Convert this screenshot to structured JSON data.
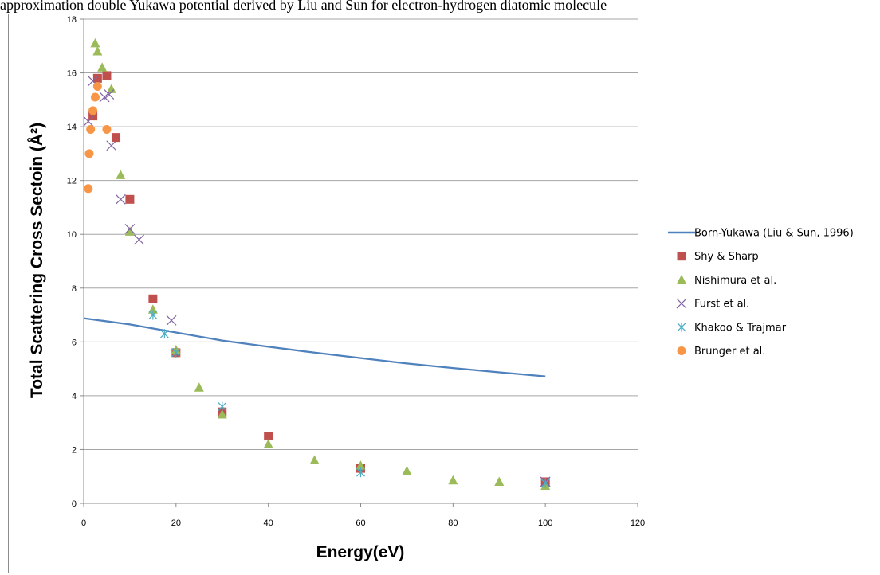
{
  "page": {
    "caption": "approximation double Yukawa potential derived by Liu and Sun for electron-hydrogen diatomic molecule"
  },
  "colors": {
    "theory_line": "#4f81bd",
    "shy_sharp": "#c0504d",
    "nishimura": "#9bbb59",
    "furst": "#8064a2",
    "khakoo": "#4bacc6",
    "brunger": "#f79646",
    "grid": "#a6a6a6",
    "axis": "#8c8c8c"
  },
  "chart_data": {
    "type": "scatter",
    "title": "",
    "xlabel": "Energy(eV)",
    "ylabel": "Total Scattering Cross Sectoin (Å²)",
    "xlim": [
      0,
      120
    ],
    "ylim": [
      0,
      18
    ],
    "x_ticks": [
      "0",
      "20",
      "40",
      "60",
      "80",
      "100",
      "120"
    ],
    "y_ticks": [
      "0",
      "2",
      "4",
      "6",
      "8",
      "10",
      "12",
      "14",
      "16",
      "18"
    ],
    "grid": "horizontal",
    "legend_position": "right",
    "series": [
      {
        "name": "Born-Yukawa (Liu & Sun, 1996)",
        "kind": "line",
        "marker": "line",
        "color": "#4f81bd",
        "points": [
          [
            0,
            6.88
          ],
          [
            10,
            6.65
          ],
          [
            20,
            6.35
          ],
          [
            30,
            6.05
          ],
          [
            40,
            5.82
          ],
          [
            50,
            5.6
          ],
          [
            60,
            5.4
          ],
          [
            70,
            5.2
          ],
          [
            80,
            5.03
          ],
          [
            90,
            4.87
          ],
          [
            100,
            4.72
          ]
        ]
      },
      {
        "name": "Shy & Sharp",
        "kind": "scatter",
        "marker": "square",
        "color": "#c0504d",
        "points": [
          [
            2,
            14.4
          ],
          [
            3,
            15.8
          ],
          [
            5,
            15.9
          ],
          [
            7,
            13.6
          ],
          [
            10,
            11.3
          ],
          [
            15,
            7.6
          ],
          [
            20,
            5.6
          ],
          [
            30,
            3.4
          ],
          [
            40,
            2.5
          ],
          [
            60,
            1.3
          ],
          [
            100,
            0.8
          ]
        ]
      },
      {
        "name": "Nishimura et al.",
        "kind": "scatter",
        "marker": "triangle",
        "color": "#9bbb59",
        "points": [
          [
            2.5,
            17.1
          ],
          [
            3,
            16.8
          ],
          [
            4,
            16.2
          ],
          [
            6,
            15.4
          ],
          [
            8,
            12.2
          ],
          [
            10,
            10.1
          ],
          [
            15,
            7.2
          ],
          [
            20,
            5.7
          ],
          [
            25,
            4.3
          ],
          [
            30,
            3.3
          ],
          [
            40,
            2.2
          ],
          [
            50,
            1.6
          ],
          [
            60,
            1.4
          ],
          [
            70,
            1.2
          ],
          [
            80,
            0.85
          ],
          [
            90,
            0.8
          ],
          [
            100,
            0.65
          ]
        ]
      },
      {
        "name": "Furst et al.",
        "kind": "scatter",
        "marker": "x",
        "color": "#8064a2",
        "points": [
          [
            1,
            14.2
          ],
          [
            2,
            15.7
          ],
          [
            4.5,
            15.1
          ],
          [
            5.5,
            15.2
          ],
          [
            6,
            13.3
          ],
          [
            8,
            11.3
          ],
          [
            10,
            10.2
          ],
          [
            12,
            9.8
          ],
          [
            19,
            6.8
          ],
          [
            100,
            0.8
          ]
        ]
      },
      {
        "name": "Khakoo & Trajmar",
        "kind": "scatter",
        "marker": "asterisk",
        "color": "#4bacc6",
        "points": [
          [
            15,
            7.0
          ],
          [
            17.5,
            6.3
          ],
          [
            20,
            5.6
          ],
          [
            30,
            3.6
          ],
          [
            60,
            1.15
          ],
          [
            100,
            0.75
          ]
        ]
      },
      {
        "name": "Brunger et al.",
        "kind": "scatter",
        "marker": "circle",
        "color": "#f79646",
        "points": [
          [
            1,
            11.7
          ],
          [
            1.2,
            13.0
          ],
          [
            1.5,
            13.9
          ],
          [
            2,
            14.6
          ],
          [
            2.5,
            15.1
          ],
          [
            3,
            15.5
          ],
          [
            5,
            13.9
          ]
        ]
      }
    ]
  }
}
